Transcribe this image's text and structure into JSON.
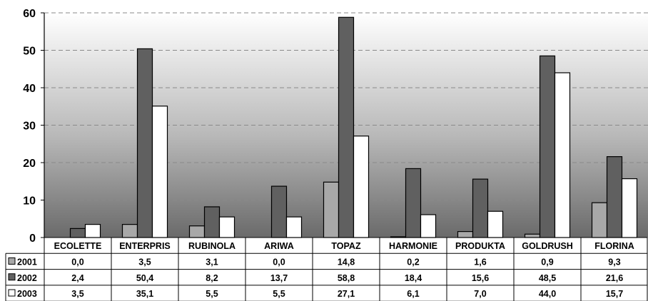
{
  "chart_data": {
    "type": "bar",
    "categories": [
      "ECOLETTE",
      "ENTERPRIS",
      "RUBINOLA",
      "ARIWA",
      "TOPAZ",
      "HARMONIE",
      "PRODUKTA",
      "GOLDRUSH",
      "FLORINA"
    ],
    "series": [
      {
        "name": "2001",
        "values": [
          0.0,
          3.5,
          3.1,
          0.0,
          14.8,
          0.2,
          1.6,
          0.9,
          9.3
        ],
        "labels": [
          "0,0",
          "3,5",
          "3,1",
          "0,0",
          "14,8",
          "0,2",
          "1,6",
          "0,9",
          "9,3"
        ],
        "color": "#a8a8a8"
      },
      {
        "name": "2002",
        "values": [
          2.4,
          50.4,
          8.2,
          13.7,
          58.8,
          18.4,
          15.6,
          48.5,
          21.6
        ],
        "labels": [
          "2,4",
          "50,4",
          "8,2",
          "13,7",
          "58,8",
          "18,4",
          "15,6",
          "48,5",
          "21,6"
        ],
        "color": "#606060"
      },
      {
        "name": "2003",
        "values": [
          3.5,
          35.1,
          5.5,
          5.5,
          27.1,
          6.1,
          7.0,
          44.0,
          15.7
        ],
        "labels": [
          "3,5",
          "35,1",
          "5,5",
          "5,5",
          "27,1",
          "6,1",
          "7,0",
          "44,0",
          "15,7"
        ],
        "color": "#ffffff"
      }
    ],
    "ylim": [
      0,
      60
    ],
    "yticks": [
      0,
      10,
      20,
      30,
      40,
      50,
      60
    ],
    "grid": true,
    "legend": "data-table"
  }
}
